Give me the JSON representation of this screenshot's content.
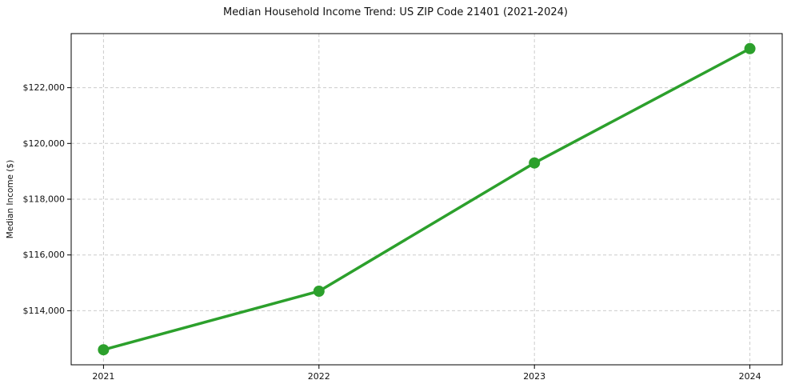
{
  "figure": {
    "title": "Median Household Income Trend: US ZIP Code 21401 (2021-2024)",
    "ylabel": "Median Income ($)"
  },
  "chart_data": {
    "type": "line",
    "title": "Median Household Income Trend: US ZIP Code 21401 (2021-2024)",
    "xlabel": "",
    "ylabel": "Median Income ($)",
    "x": [
      2021,
      2022,
      2023,
      2024
    ],
    "values": [
      112600,
      114700,
      119300,
      123400
    ],
    "xticks": [
      {
        "value": 2021,
        "label": "2021"
      },
      {
        "value": 2022,
        "label": "2022"
      },
      {
        "value": 2023,
        "label": "2023"
      },
      {
        "value": 2024,
        "label": "2024"
      }
    ],
    "yticks": [
      {
        "value": 114000,
        "label": "$114,000"
      },
      {
        "value": 116000,
        "label": "$116,000"
      },
      {
        "value": 118000,
        "label": "$118,000"
      },
      {
        "value": 120000,
        "label": "$120,000"
      },
      {
        "value": 122000,
        "label": "$122,000"
      }
    ],
    "xlim": [
      2020.85,
      2024.15
    ],
    "ylim": [
      112060,
      123940
    ],
    "grid": true,
    "grid_style": "dashed",
    "legend": "none",
    "colors": {
      "line": "#2ca02c",
      "marker": "#2ca02c",
      "grid": "#cccccc",
      "axis": "#000000",
      "text": "#111111"
    }
  }
}
